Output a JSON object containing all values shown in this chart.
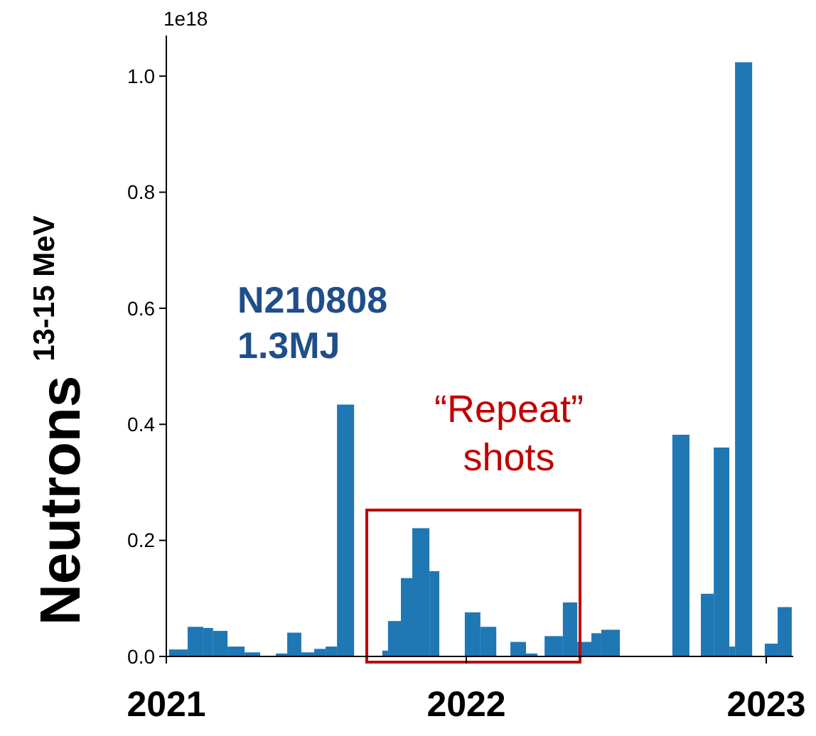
{
  "chart_data": {
    "type": "histogram",
    "ylabel": "Neutrons 13-15 MeV",
    "color": "#1f77b4",
    "bins": [
      2021.009,
      2021.071,
      2021.123,
      2021.156,
      2021.204,
      2021.261,
      2021.313,
      2021.365,
      2021.403,
      2021.45,
      2021.493,
      2021.531,
      2021.569,
      2021.626,
      2021.72,
      2021.739,
      2021.782,
      2021.82,
      2021.877,
      2021.91,
      2021.995,
      2022.047,
      2022.1,
      2022.147,
      2022.199,
      2022.237,
      2022.261,
      2022.322,
      2022.37,
      2022.417,
      2022.45,
      2022.512,
      2022.687,
      2022.744,
      2022.782,
      2022.825,
      2022.877,
      2022.896,
      2022.953,
      2022.995,
      2023.038,
      2023.085
    ],
    "values": [
      0.012,
      0.051,
      0.049,
      0.044,
      0.017,
      0.007,
      0,
      0.005,
      0.041,
      0.007,
      0.013,
      0.017,
      0.434,
      0,
      0.01,
      0.061,
      0.135,
      0.221,
      0.147,
      0,
      0.076,
      0.051,
      0,
      0.025,
      0.005,
      0,
      0.035,
      0.093,
      0.025,
      0.04,
      0.046,
      0,
      0.382,
      0,
      0.108,
      0.36,
      0.017,
      1.024,
      0,
      0.022,
      0.085
    ],
    "xlim": [
      2021,
      2023.09
    ],
    "xticks": [
      2021,
      2022,
      2023
    ],
    "ylim": [
      0,
      1.07
    ],
    "yticks": [
      {
        "value": 0,
        "label": "0.0"
      },
      {
        "value": 0.2,
        "label": "0.2"
      },
      {
        "value": 0.4,
        "label": "0.4"
      },
      {
        "value": 0.6,
        "label": "0.6"
      },
      {
        "value": 0.8,
        "label": "0.8"
      },
      {
        "value": 1,
        "label": "1.0"
      }
    ],
    "annotations": [
      "1e18",
      "N210808\n1.3MJ",
      "“Repeat”\nshots"
    ]
  }
}
